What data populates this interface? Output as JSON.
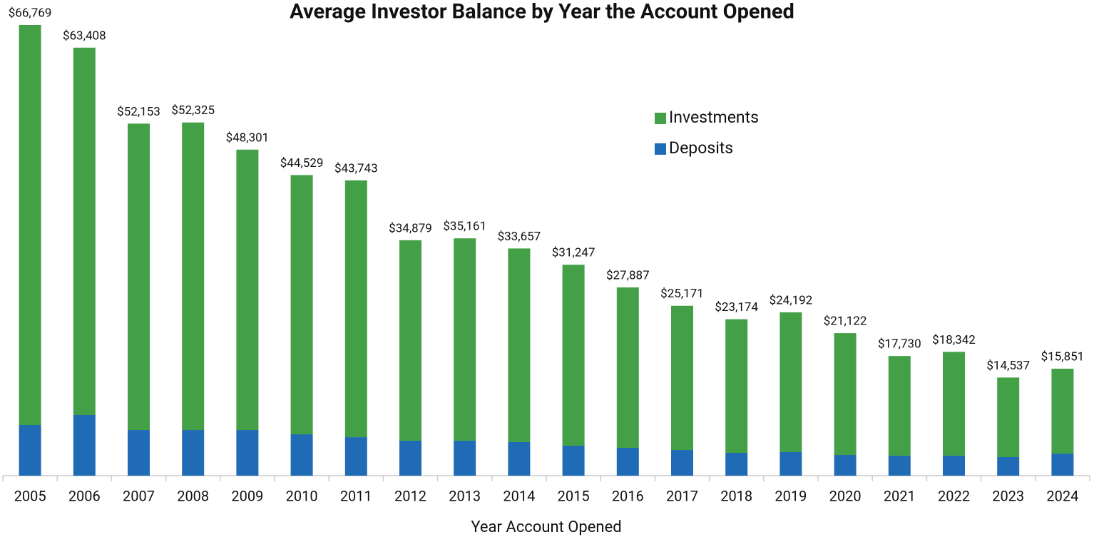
{
  "chart_data": {
    "type": "stacked_bar",
    "title": "Average Investor Balance by Year the Account Opened",
    "x_label": "Year Account Opened",
    "categories": [
      "2005",
      "2006",
      "2007",
      "2008",
      "2009",
      "2010",
      "2011",
      "2012",
      "2013",
      "2014",
      "2015",
      "2016",
      "2017",
      "2018",
      "2019",
      "2020",
      "2021",
      "2022",
      "2023",
      "2024"
    ],
    "series": [
      {
        "name": "Deposits",
        "color": "#1f6bb5",
        "values": [
          7500,
          8980,
          6760,
          6760,
          6760,
          6130,
          5700,
          5180,
          5180,
          4970,
          4440,
          4120,
          3800,
          3380,
          3490,
          3060,
          2960,
          2960,
          2750,
          3270
        ]
      },
      {
        "name": "Investments",
        "color": "#43a047",
        "values": [
          59269,
          54428,
          45393,
          45565,
          41541,
          38399,
          38043,
          29699,
          29981,
          28687,
          26807,
          23767,
          21371,
          19794,
          20702,
          18062,
          14770,
          15382,
          11787,
          12581
        ]
      }
    ],
    "totals": [
      66769,
      63408,
      52153,
      52325,
      48301,
      44529,
      43743,
      34879,
      35161,
      33657,
      31247,
      27887,
      25171,
      23174,
      24192,
      21122,
      17730,
      18342,
      14537,
      15851
    ],
    "total_labels": [
      "$66,769",
      "$63,408",
      "$52,153",
      "$52,325",
      "$48,301",
      "$44,529",
      "$43,743",
      "$34,879",
      "$35,161",
      "$33,657",
      "$31,247",
      "$27,887",
      "$25,171",
      "$23,174",
      "$24,192",
      "$21,122",
      "$17,730",
      "$18,342",
      "$14,537",
      "$15,851"
    ]
  }
}
